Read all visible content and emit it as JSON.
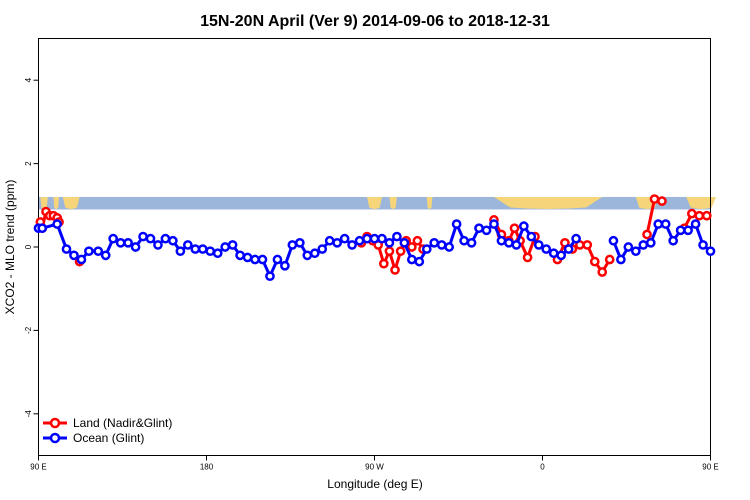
{
  "chart_data": {
    "type": "line",
    "title": "15N-20N April (Ver 9)   2014-09-06 to 2018-12-31",
    "xlabel": "Longitude (deg E)",
    "ylabel": "XCO2 - MLO trend (ppm)",
    "xlim": [
      90,
      450
    ],
    "ylim": [
      -5,
      5
    ],
    "x_ticks": [
      {
        "value": 90,
        "label": "90 E"
      },
      {
        "value": 180,
        "label": "180"
      },
      {
        "value": 270,
        "label": "90 W"
      },
      {
        "value": 360,
        "label": "0"
      },
      {
        "value": 450,
        "label": "90 E"
      },
      {
        "value": 540,
        "label": "180"
      }
    ],
    "y_ticks": [
      -4,
      -2,
      0,
      2,
      4
    ],
    "legend_placement": "bottom-left",
    "colors": {
      "land": "#ff0000",
      "ocean": "#0000ff",
      "map_ocean": "#9bb6da",
      "map_land": "#f6d57a"
    },
    "series": [
      {
        "name": "Land (Nadir&Glint)",
        "color": "#ff0000",
        "segments": [
          [
            [
              91,
              0.6
            ],
            [
              92,
              0.45
            ],
            [
              94,
              0.85
            ],
            [
              96,
              0.75
            ],
            [
              98,
              0.75
            ],
            [
              100,
              0.7
            ],
            [
              101,
              0.6
            ]
          ],
          [
            [
              112,
              -0.35
            ]
          ],
          [
            [
              263,
              0.1
            ],
            [
              266,
              0.25
            ],
            [
              269,
              0.15
            ],
            [
              272,
              0.05
            ],
            [
              275,
              -0.4
            ],
            [
              278,
              -0.1
            ],
            [
              281,
              -0.55
            ],
            [
              284,
              -0.1
            ],
            [
              287,
              0.15
            ],
            [
              290,
              0.0
            ],
            [
              293,
              0.15
            ],
            [
              296,
              -0.05
            ]
          ],
          [
            [
              334,
              0.65
            ],
            [
              338,
              0.3
            ],
            [
              342,
              0.15
            ],
            [
              345,
              0.45
            ],
            [
              348,
              0.15
            ],
            [
              352,
              -0.25
            ],
            [
              356,
              0.25
            ]
          ],
          [
            [
              368,
              -0.3
            ],
            [
              372,
              0.1
            ],
            [
              376,
              -0.05
            ],
            [
              380,
              0.05
            ],
            [
              384,
              0.05
            ],
            [
              388,
              -0.35
            ],
            [
              392,
              -0.6
            ],
            [
              396,
              -0.3
            ]
          ],
          [
            [
              416,
              0.3
            ],
            [
              420,
              1.15
            ],
            [
              424,
              1.1
            ]
          ],
          [
            [
              436,
              0.45
            ],
            [
              440,
              0.8
            ],
            [
              444,
              0.75
            ],
            [
              448,
              0.75
            ]
          ],
          [
            [
              462,
              -0.4
            ]
          ]
        ]
      },
      {
        "name": "Ocean (Glint)",
        "color": "#0000ff",
        "segments": [
          [
            [
              90,
              0.45
            ],
            [
              92,
              0.45
            ],
            [
              100,
              0.55
            ],
            [
              105,
              -0.05
            ],
            [
              109,
              -0.2
            ],
            [
              113,
              -0.3
            ],
            [
              117,
              -0.1
            ],
            [
              122,
              -0.1
            ],
            [
              126,
              -0.2
            ],
            [
              130,
              0.2
            ],
            [
              134,
              0.1
            ],
            [
              138,
              0.1
            ],
            [
              142,
              0.0
            ],
            [
              146,
              0.25
            ],
            [
              150,
              0.2
            ],
            [
              154,
              0.05
            ],
            [
              158,
              0.2
            ],
            [
              162,
              0.15
            ],
            [
              166,
              -0.1
            ],
            [
              170,
              0.05
            ],
            [
              174,
              -0.05
            ],
            [
              178,
              -0.05
            ],
            [
              182,
              -0.1
            ],
            [
              186,
              -0.15
            ],
            [
              190,
              0.0
            ],
            [
              194,
              0.05
            ],
            [
              198,
              -0.2
            ],
            [
              202,
              -0.25
            ],
            [
              206,
              -0.3
            ],
            [
              210,
              -0.3
            ],
            [
              214,
              -0.7
            ],
            [
              218,
              -0.3
            ],
            [
              222,
              -0.45
            ],
            [
              226,
              0.05
            ],
            [
              230,
              0.1
            ],
            [
              234,
              -0.2
            ],
            [
              238,
              -0.15
            ],
            [
              242,
              -0.05
            ],
            [
              246,
              0.15
            ],
            [
              250,
              0.1
            ],
            [
              254,
              0.2
            ],
            [
              258,
              0.05
            ],
            [
              262,
              0.15
            ],
            [
              266,
              0.2
            ],
            [
              270,
              0.2
            ],
            [
              274,
              0.2
            ],
            [
              278,
              0.1
            ],
            [
              282,
              0.25
            ],
            [
              286,
              0.1
            ],
            [
              290,
              -0.3
            ],
            [
              294,
              -0.35
            ],
            [
              298,
              -0.05
            ],
            [
              302,
              0.1
            ],
            [
              306,
              0.05
            ],
            [
              310,
              0.0
            ],
            [
              314,
              0.55
            ],
            [
              318,
              0.15
            ],
            [
              322,
              0.1
            ],
            [
              326,
              0.45
            ],
            [
              330,
              0.4
            ],
            [
              334,
              0.55
            ],
            [
              338,
              0.15
            ],
            [
              342,
              0.1
            ],
            [
              346,
              0.05
            ],
            [
              350,
              0.5
            ],
            [
              354,
              0.25
            ],
            [
              358,
              0.05
            ],
            [
              362,
              -0.05
            ],
            [
              366,
              -0.15
            ],
            [
              370,
              -0.2
            ],
            [
              374,
              -0.05
            ],
            [
              378,
              0.2
            ]
          ],
          [
            [
              398,
              0.15
            ],
            [
              402,
              -0.3
            ],
            [
              406,
              0.0
            ],
            [
              410,
              -0.1
            ],
            [
              414,
              0.05
            ],
            [
              418,
              0.1
            ],
            [
              422,
              0.55
            ],
            [
              426,
              0.55
            ],
            [
              430,
              0.15
            ],
            [
              434,
              0.4
            ],
            [
              438,
              0.4
            ],
            [
              442,
              0.55
            ],
            [
              446,
              0.05
            ],
            [
              450,
              -0.1
            ],
            [
              454,
              -0.25
            ],
            [
              458,
              -0.15
            ],
            [
              462,
              -0.15
            ],
            [
              466,
              0.2
            ],
            [
              470,
              0.05
            ],
            [
              474,
              0.1
            ],
            [
              478,
              0.0
            ],
            [
              482,
              0.25
            ],
            [
              486,
              0.2
            ],
            [
              490,
              0.05
            ],
            [
              494,
              0.15
            ]
          ]
        ]
      }
    ]
  }
}
